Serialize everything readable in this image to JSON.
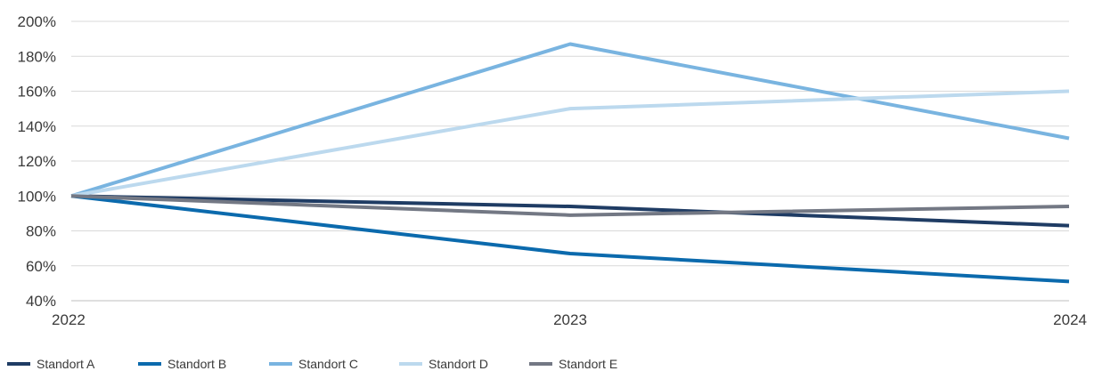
{
  "chart_data": {
    "type": "line",
    "title": "",
    "xlabel": "",
    "ylabel": "",
    "categories": [
      "2022",
      "2023",
      "2024"
    ],
    "ylim": [
      40,
      200
    ],
    "y_ticks": [
      40,
      60,
      80,
      100,
      120,
      140,
      160,
      180,
      200
    ],
    "y_tick_suffix": "%",
    "grid": true,
    "legend_position": "bottom-left",
    "series": [
      {
        "name": "Standort A",
        "color": "#1f3c64",
        "values": [
          100,
          94,
          83
        ]
      },
      {
        "name": "Standort B",
        "color": "#0b6aad",
        "values": [
          100,
          67,
          51
        ]
      },
      {
        "name": "Standort C",
        "color": "#79b4e0",
        "values": [
          100,
          187,
          133
        ]
      },
      {
        "name": "Standort D",
        "color": "#bcd9ee",
        "values": [
          100,
          150,
          160
        ]
      },
      {
        "name": "Standort E",
        "color": "#737884",
        "values": [
          100,
          89,
          94
        ]
      }
    ]
  }
}
